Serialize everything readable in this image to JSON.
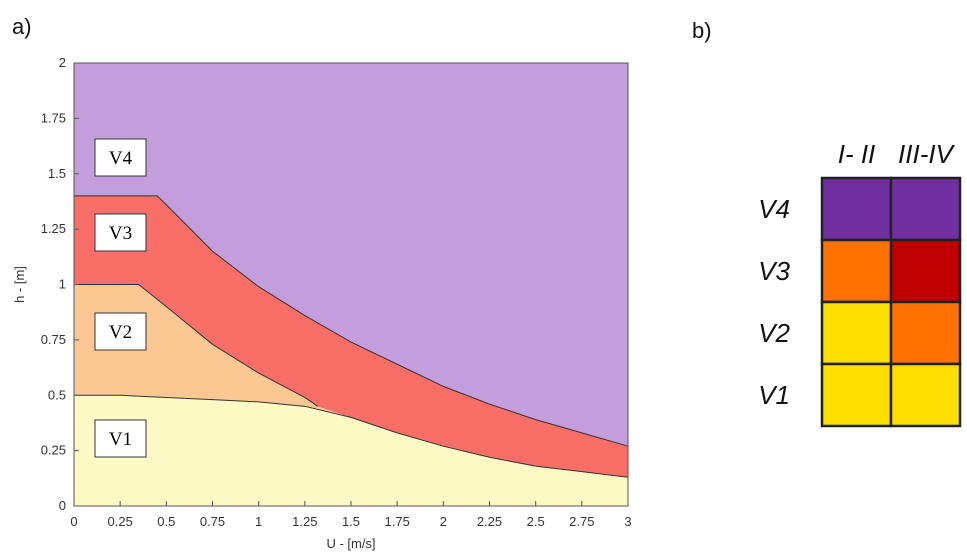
{
  "panel_a_label": "a)",
  "panel_b_label": "b)",
  "chart_data": {
    "type": "area",
    "xlabel": "U - [m/s]",
    "ylabel": "h - [m]",
    "xlim": [
      0,
      3
    ],
    "ylim": [
      0,
      2
    ],
    "x_ticks": [
      "0",
      "0.25",
      "0.5",
      "0.75",
      "1",
      "1.25",
      "1.5",
      "1.75",
      "2",
      "2.25",
      "2.5",
      "2.75",
      "3"
    ],
    "y_ticks": [
      "0",
      "0.25",
      "0.5",
      "0.75",
      "1",
      "1.25",
      "1.5",
      "1.75",
      "2"
    ],
    "grid": false,
    "colors": {
      "V1": "#fdf9c4",
      "V2": "#fbc894",
      "V3": "#fa6e68",
      "V4": "#c49ddc"
    },
    "boundaries": [
      {
        "name": "V1 upper",
        "x": [
          0,
          0.25,
          0.5,
          0.75,
          1,
          1.25,
          1.5,
          1.75,
          2,
          2.25,
          2.5,
          2.75,
          3
        ],
        "y": [
          0.5,
          0.5,
          0.49,
          0.48,
          0.47,
          0.45,
          0.4,
          0.33,
          0.27,
          0.22,
          0.18,
          0.155,
          0.13
        ]
      },
      {
        "name": "V2 upper",
        "x": [
          0,
          0.25,
          0.35,
          0.5,
          0.75,
          1,
          1.25,
          1.32
        ],
        "y": [
          1,
          1,
          1,
          0.9,
          0.73,
          0.6,
          0.49,
          0.45
        ]
      },
      {
        "name": "V3 upper",
        "x": [
          0,
          0.25,
          0.45,
          0.5,
          0.75,
          1,
          1.25,
          1.5,
          1.75,
          2,
          2.25,
          2.5,
          2.75,
          3
        ],
        "y": [
          1.4,
          1.4,
          1.4,
          1.36,
          1.15,
          0.99,
          0.86,
          0.74,
          0.64,
          0.54,
          0.46,
          0.39,
          0.33,
          0.27
        ]
      }
    ],
    "zone_labels": [
      "V1",
      "V2",
      "V3",
      "V4"
    ],
    "matrix": {
      "columns": [
        "I- II",
        "III-IV"
      ],
      "rows": [
        {
          "label": "V4",
          "colors": [
            "#7030a0",
            "#7030a0"
          ]
        },
        {
          "label": "V3",
          "colors": [
            "#ff7200",
            "#c00000"
          ]
        },
        {
          "label": "V2",
          "colors": [
            "#ffdf00",
            "#ff7200"
          ]
        },
        {
          "label": "V1",
          "colors": [
            "#ffdf00",
            "#ffdf00"
          ]
        }
      ]
    }
  }
}
